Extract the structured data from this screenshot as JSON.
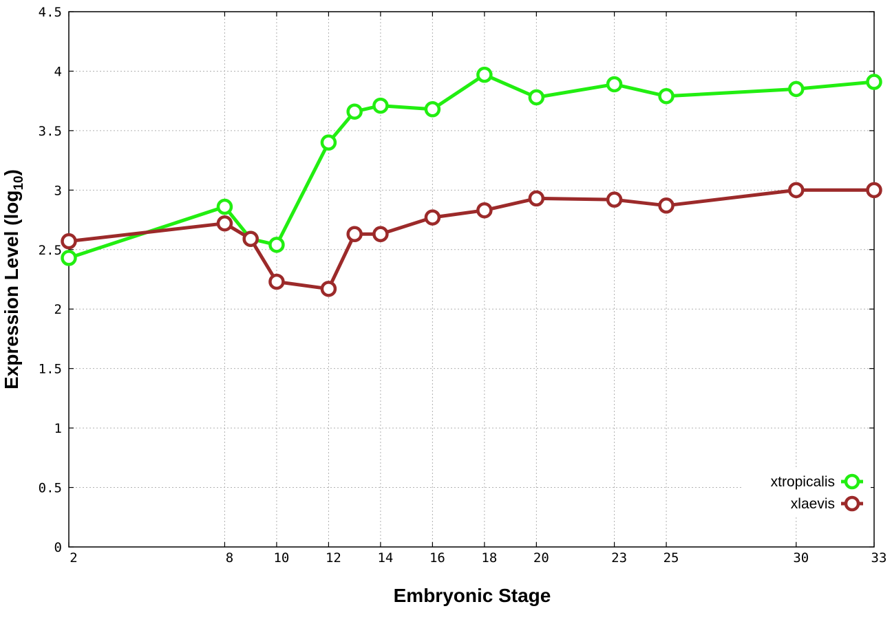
{
  "chart_data": {
    "type": "line",
    "xlabel": "Embryonic Stage",
    "ylabel": "Expression Level (log",
    "ylabel_subscript": "10",
    "ylabel_close": ")",
    "xlim": [
      2,
      33
    ],
    "ylim": [
      0,
      4.5
    ],
    "x_ticks": [
      2,
      8,
      10,
      12,
      14,
      16,
      18,
      20,
      23,
      25,
      30,
      33
    ],
    "y_ticks": [
      0,
      0.5,
      1,
      1.5,
      2,
      2.5,
      3,
      3.5,
      4,
      4.5
    ],
    "y_tick_labels": [
      "0",
      "0.5",
      "1",
      "1.5",
      "2",
      "2.5",
      "3",
      "3.5",
      "4",
      "4.5"
    ],
    "grid": true,
    "legend_position": "bottom-right",
    "x": [
      2,
      8,
      9,
      10,
      12,
      13,
      14,
      16,
      18,
      20,
      23,
      25,
      30,
      33
    ],
    "series": [
      {
        "name": "xtropicalis",
        "color": "#22ee11",
        "values": [
          2.43,
          2.86,
          2.59,
          2.54,
          3.4,
          3.66,
          3.71,
          3.68,
          3.97,
          3.78,
          3.89,
          3.79,
          3.85,
          3.91
        ]
      },
      {
        "name": "xlaevis",
        "color": "#9c2a2a",
        "values": [
          2.57,
          2.72,
          2.59,
          2.23,
          2.17,
          2.63,
          2.63,
          2.77,
          2.83,
          2.93,
          2.92,
          2.87,
          3.0,
          3.0
        ]
      }
    ]
  }
}
